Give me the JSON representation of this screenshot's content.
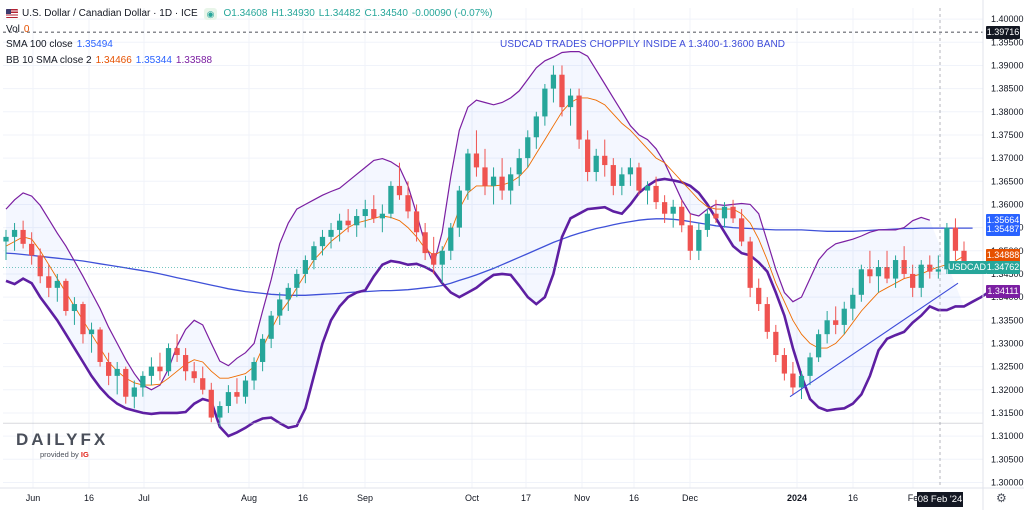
{
  "header": {
    "title": "U.S. Dollar / Canadian Dollar · 1D · ICE",
    "ohlc": {
      "o": "O1.34608",
      "h": "H1.34930",
      "l": "L1.34482",
      "c": "C1.34540",
      "chg": "-0.00090 (-0.07%)"
    },
    "vol_label": "Vol",
    "vol_value": "0",
    "sma_label": "SMA 100 close",
    "sma_value": "1.35494",
    "bb_label": "BB 10 SMA close 2",
    "bb_basis": "1.34466",
    "bb_upper": "1.35344",
    "bb_lower": "1.33588"
  },
  "annotation": "USDCAD TRADES CHOPPILY INSIDE A 1.3400-1.3600 BAND",
  "logo": {
    "name": "DAILYFX",
    "provided_by": "provided by",
    "brand": "IG"
  },
  "price_tags": [
    {
      "label": "1.39716",
      "value": 1.3972,
      "color": "#131722"
    },
    {
      "label": "1.35664",
      "value": 1.3566,
      "color": "#2962ff"
    },
    {
      "label": "1.35487",
      "value": 1.3545,
      "color": "#2962ff"
    },
    {
      "label": "1.34888",
      "value": 1.3489,
      "color": "#e65100"
    },
    {
      "label": "1.34762",
      "value": 1.3464,
      "color": "#26a69a"
    },
    {
      "label": "1.34111",
      "value": 1.3412,
      "color": "#7b1fa2"
    }
  ],
  "usdcad_tag": "USDCAD",
  "crosshair_date": "08 Feb '24",
  "chart_data": {
    "type": "candlestick",
    "y_ticks": [
      "1.40000",
      "1.39500",
      "1.39000",
      "1.38500",
      "1.38000",
      "1.37500",
      "1.37000",
      "1.36500",
      "1.36000",
      "1.35500",
      "1.35000",
      "1.34500",
      "1.34000",
      "1.33500",
      "1.33000",
      "1.32500",
      "1.32000",
      "1.31500",
      "1.31000",
      "1.30500",
      "1.30000"
    ],
    "ylim": [
      1.2988,
      1.4024
    ],
    "x_ticks": [
      "Jun",
      "16",
      "Jul",
      "Aug",
      "16",
      "Sep",
      "Oct",
      "17",
      "Nov",
      "16",
      "Dec",
      "2024",
      "16",
      "Fe"
    ],
    "upper_band": [
      1.359,
      1.361,
      1.3625,
      1.3618,
      1.3598,
      1.3568,
      1.3538,
      1.351,
      1.3478,
      1.3445,
      1.341,
      1.3375,
      1.3335,
      1.33,
      1.3265,
      1.3235,
      1.321,
      1.32,
      1.321,
      1.3245,
      1.3295,
      1.333,
      1.335,
      1.334,
      1.33,
      1.3262,
      1.3252,
      1.3268,
      1.328,
      1.33,
      1.337,
      1.3438,
      1.3515,
      1.356,
      1.359,
      1.36,
      1.361,
      1.362,
      1.3628,
      1.3635,
      1.365,
      1.3665,
      1.368,
      1.3695,
      1.3699,
      1.3692,
      1.368,
      1.364,
      1.358,
      1.3515,
      1.347,
      1.354,
      1.366,
      1.376,
      1.381,
      1.3825,
      1.382,
      1.3815,
      1.382,
      1.383,
      1.3845,
      1.387,
      1.3895,
      1.391,
      1.3918,
      1.3928,
      1.393,
      1.393,
      1.392,
      1.389,
      1.386,
      1.383,
      1.38,
      1.377,
      1.375,
      1.374,
      1.372,
      1.369,
      1.365,
      1.361,
      1.358,
      1.3575,
      1.359,
      1.36,
      1.3598,
      1.36,
      1.3602,
      1.36,
      1.358,
      1.352,
      1.346,
      1.341,
      1.339,
      1.34,
      1.344,
      1.348,
      1.3502,
      1.3515,
      1.352,
      1.3525,
      1.3532,
      1.354,
      1.3545,
      1.3545,
      1.3545,
      1.355,
      1.3565,
      1.3572,
      1.3566
    ],
    "lower_band": [
      1.3435,
      1.3428,
      1.344,
      1.343,
      1.34,
      1.3375,
      1.335,
      1.332,
      1.329,
      1.326,
      1.323,
      1.3205,
      1.3185,
      1.317,
      1.316,
      1.3155,
      1.315,
      1.3148,
      1.315,
      1.315,
      1.315,
      1.3152,
      1.317,
      1.318,
      1.3175,
      1.312,
      1.31,
      1.3108,
      1.3118,
      1.313,
      1.3138,
      1.314,
      1.3128,
      1.3118,
      1.3122,
      1.316,
      1.323,
      1.33,
      1.335,
      1.338,
      1.34,
      1.341,
      1.3415,
      1.3445,
      1.347,
      1.3478,
      1.3475,
      1.347,
      1.3472,
      1.3465,
      1.3455,
      1.343,
      1.341,
      1.34,
      1.341,
      1.342,
      1.3435,
      1.3448,
      1.345,
      1.3448,
      1.3425,
      1.34,
      1.3385,
      1.34,
      1.345,
      1.353,
      1.357,
      1.358,
      1.359,
      1.3592,
      1.3594,
      1.3585,
      1.358,
      1.36,
      1.3625,
      1.364,
      1.3652,
      1.3655,
      1.3652,
      1.3648,
      1.364,
      1.3625,
      1.36,
      1.357,
      1.354,
      1.351,
      1.3495,
      1.349,
      1.3475,
      1.3455,
      1.341,
      1.336,
      1.329,
      1.323,
      1.318,
      1.3162,
      1.3155,
      1.3158,
      1.316,
      1.317,
      1.319,
      1.323,
      1.3285,
      1.331,
      1.3318,
      1.3325,
      1.3345,
      1.336,
      1.338,
      1.3372,
      1.3372,
      1.338,
      1.338,
      1.339,
      1.34,
      1.3412
    ],
    "basis": [
      1.351,
      1.352,
      1.353,
      1.3525,
      1.35,
      1.347,
      1.344,
      1.341,
      1.338,
      1.335,
      1.332,
      1.329,
      1.326,
      1.324,
      1.3225,
      1.3215,
      1.321,
      1.321,
      1.3212,
      1.3225,
      1.324,
      1.3255,
      1.3265,
      1.326,
      1.324,
      1.3225,
      1.3225,
      1.323,
      1.3235,
      1.325,
      1.329,
      1.333,
      1.3365,
      1.339,
      1.342,
      1.345,
      1.348,
      1.35,
      1.352,
      1.3535,
      1.355,
      1.356,
      1.3565,
      1.357,
      1.3575,
      1.3572,
      1.3565,
      1.355,
      1.353,
      1.3505,
      1.349,
      1.35,
      1.354,
      1.359,
      1.3625,
      1.364,
      1.364,
      1.364,
      1.3642,
      1.3648,
      1.366,
      1.368,
      1.371,
      1.374,
      1.377,
      1.38,
      1.382,
      1.383,
      1.383,
      1.3825,
      1.3815,
      1.3795,
      1.3775,
      1.376,
      1.374,
      1.372,
      1.37,
      1.369,
      1.367,
      1.365,
      1.363,
      1.361,
      1.3595,
      1.359,
      1.359,
      1.359,
      1.358,
      1.356,
      1.3525,
      1.348,
      1.343,
      1.339,
      1.335,
      1.332,
      1.33,
      1.329,
      1.329,
      1.33,
      1.332,
      1.3345,
      1.337,
      1.339,
      1.341,
      1.342,
      1.343,
      1.344,
      1.3445,
      1.345,
      1.3458,
      1.3465,
      1.347,
      1.3478,
      1.3489
    ],
    "sma100": [
      1.3495,
      1.3494,
      1.3492,
      1.349,
      1.3488,
      1.3486,
      1.3484,
      1.3482,
      1.348,
      1.3478,
      1.3475,
      1.3472,
      1.3469,
      1.3466,
      1.3463,
      1.346,
      1.3457,
      1.3454,
      1.345,
      1.3446,
      1.3442,
      1.3438,
      1.3434,
      1.343,
      1.3426,
      1.3422,
      1.3418,
      1.3415,
      1.3412,
      1.341,
      1.3408,
      1.3406,
      1.3405,
      1.3404,
      1.3404,
      1.3404,
      1.3405,
      1.3406,
      1.3407,
      1.3408,
      1.341,
      1.3411,
      1.3412,
      1.3413,
      1.3414,
      1.3414,
      1.3415,
      1.3416,
      1.3418,
      1.342,
      1.3422,
      1.3425,
      1.343,
      1.3436,
      1.3442,
      1.3448,
      1.3455,
      1.3462,
      1.347,
      1.3478,
      1.3486,
      1.3494,
      1.3502,
      1.351,
      1.3518,
      1.3525,
      1.3532,
      1.3538,
      1.3543,
      1.3548,
      1.3552,
      1.3556,
      1.356,
      1.3563,
      1.3566,
      1.3568,
      1.3569,
      1.3569,
      1.3568,
      1.3566,
      1.3563,
      1.356,
      1.3557,
      1.3554,
      1.3552,
      1.355,
      1.3549,
      1.3548,
      1.3547,
      1.3546,
      1.3545,
      1.3545,
      1.3545,
      1.3545,
      1.3544,
      1.3543,
      1.3542,
      1.3542,
      1.3542,
      1.3542,
      1.3543,
      1.3544,
      1.3545,
      1.3546,
      1.3547,
      1.3548,
      1.3548,
      1.3549,
      1.3549,
      1.3549,
      1.3549,
      1.3549,
      1.3549,
      1.3549
    ],
    "candles": [
      [
        1.352,
        1.3545,
        1.348,
        1.353
      ],
      [
        1.353,
        1.356,
        1.35,
        1.3545
      ],
      [
        1.3545,
        1.3565,
        1.3505,
        1.3515
      ],
      [
        1.3515,
        1.354,
        1.347,
        1.349
      ],
      [
        1.349,
        1.3505,
        1.343,
        1.3445
      ],
      [
        1.3445,
        1.347,
        1.34,
        1.342
      ],
      [
        1.342,
        1.345,
        1.339,
        1.3435
      ],
      [
        1.3435,
        1.344,
        1.336,
        1.337
      ],
      [
        1.337,
        1.34,
        1.334,
        1.3385
      ],
      [
        1.3385,
        1.339,
        1.33,
        1.332
      ],
      [
        1.332,
        1.3345,
        1.328,
        1.333
      ],
      [
        1.333,
        1.3335,
        1.325,
        1.326
      ],
      [
        1.326,
        1.328,
        1.321,
        1.323
      ],
      [
        1.323,
        1.326,
        1.319,
        1.3245
      ],
      [
        1.3245,
        1.325,
        1.317,
        1.3185
      ],
      [
        1.3185,
        1.322,
        1.316,
        1.3205
      ],
      [
        1.3205,
        1.324,
        1.3185,
        1.323
      ],
      [
        1.323,
        1.327,
        1.321,
        1.325
      ],
      [
        1.325,
        1.328,
        1.322,
        1.324
      ],
      [
        1.324,
        1.33,
        1.323,
        1.329
      ],
      [
        1.329,
        1.332,
        1.326,
        1.3275
      ],
      [
        1.3275,
        1.329,
        1.322,
        1.324
      ],
      [
        1.324,
        1.326,
        1.3215,
        1.3225
      ],
      [
        1.3225,
        1.325,
        1.319,
        1.32
      ],
      [
        1.32,
        1.3215,
        1.313,
        1.314
      ],
      [
        1.314,
        1.3175,
        1.312,
        1.3165
      ],
      [
        1.3165,
        1.321,
        1.315,
        1.3195
      ],
      [
        1.3195,
        1.3225,
        1.317,
        1.3185
      ],
      [
        1.3185,
        1.323,
        1.317,
        1.322
      ],
      [
        1.322,
        1.327,
        1.32,
        1.326
      ],
      [
        1.326,
        1.332,
        1.324,
        1.331
      ],
      [
        1.331,
        1.337,
        1.329,
        1.336
      ],
      [
        1.336,
        1.341,
        1.334,
        1.3395
      ],
      [
        1.3395,
        1.343,
        1.337,
        1.342
      ],
      [
        1.342,
        1.346,
        1.34,
        1.345
      ],
      [
        1.345,
        1.349,
        1.343,
        1.348
      ],
      [
        1.348,
        1.352,
        1.346,
        1.351
      ],
      [
        1.351,
        1.3545,
        1.349,
        1.353
      ],
      [
        1.353,
        1.356,
        1.3505,
        1.3545
      ],
      [
        1.3545,
        1.358,
        1.352,
        1.3565
      ],
      [
        1.3565,
        1.359,
        1.354,
        1.3555
      ],
      [
        1.3555,
        1.359,
        1.353,
        1.3575
      ],
      [
        1.3575,
        1.361,
        1.355,
        1.359
      ],
      [
        1.359,
        1.362,
        1.356,
        1.357
      ],
      [
        1.357,
        1.36,
        1.354,
        1.358
      ],
      [
        1.358,
        1.365,
        1.357,
        1.364
      ],
      [
        1.364,
        1.369,
        1.361,
        1.362
      ],
      [
        1.362,
        1.365,
        1.357,
        1.3585
      ],
      [
        1.3585,
        1.36,
        1.352,
        1.354
      ],
      [
        1.354,
        1.356,
        1.348,
        1.3495
      ],
      [
        1.3495,
        1.353,
        1.345,
        1.347
      ],
      [
        1.347,
        1.351,
        1.343,
        1.35
      ],
      [
        1.35,
        1.356,
        1.348,
        1.355
      ],
      [
        1.355,
        1.364,
        1.353,
        1.363
      ],
      [
        1.363,
        1.372,
        1.361,
        1.371
      ],
      [
        1.371,
        1.376,
        1.366,
        1.368
      ],
      [
        1.368,
        1.372,
        1.362,
        1.364
      ],
      [
        1.364,
        1.368,
        1.36,
        1.366
      ],
      [
        1.366,
        1.37,
        1.361,
        1.363
      ],
      [
        1.363,
        1.368,
        1.36,
        1.3665
      ],
      [
        1.3665,
        1.372,
        1.364,
        1.37
      ],
      [
        1.37,
        1.376,
        1.368,
        1.3745
      ],
      [
        1.3745,
        1.38,
        1.372,
        1.379
      ],
      [
        1.379,
        1.386,
        1.377,
        1.385
      ],
      [
        1.385,
        1.39,
        1.382,
        1.388
      ],
      [
        1.388,
        1.39,
        1.379,
        1.381
      ],
      [
        1.381,
        1.385,
        1.377,
        1.3835
      ],
      [
        1.3835,
        1.385,
        1.372,
        1.374
      ],
      [
        1.374,
        1.376,
        1.365,
        1.367
      ],
      [
        1.367,
        1.372,
        1.365,
        1.3705
      ],
      [
        1.3705,
        1.374,
        1.366,
        1.3685
      ],
      [
        1.3685,
        1.37,
        1.362,
        1.364
      ],
      [
        1.364,
        1.368,
        1.362,
        1.3665
      ],
      [
        1.3665,
        1.37,
        1.364,
        1.368
      ],
      [
        1.368,
        1.369,
        1.362,
        1.363
      ],
      [
        1.363,
        1.365,
        1.36,
        1.364
      ],
      [
        1.364,
        1.366,
        1.359,
        1.3605
      ],
      [
        1.3605,
        1.362,
        1.356,
        1.358
      ],
      [
        1.358,
        1.361,
        1.355,
        1.3595
      ],
      [
        1.3595,
        1.361,
        1.354,
        1.3555
      ],
      [
        1.3555,
        1.358,
        1.348,
        1.35
      ],
      [
        1.35,
        1.356,
        1.348,
        1.3545
      ],
      [
        1.3545,
        1.359,
        1.353,
        1.358
      ],
      [
        1.358,
        1.361,
        1.356,
        1.357
      ],
      [
        1.357,
        1.3605,
        1.355,
        1.3595
      ],
      [
        1.3595,
        1.361,
        1.356,
        1.357
      ],
      [
        1.357,
        1.359,
        1.351,
        1.352
      ],
      [
        1.352,
        1.353,
        1.34,
        1.342
      ],
      [
        1.342,
        1.344,
        1.337,
        1.3385
      ],
      [
        1.3385,
        1.34,
        1.331,
        1.3325
      ],
      [
        1.3325,
        1.334,
        1.326,
        1.3275
      ],
      [
        1.3275,
        1.329,
        1.322,
        1.3235
      ],
      [
        1.3235,
        1.326,
        1.319,
        1.3205
      ],
      [
        1.3205,
        1.324,
        1.318,
        1.323
      ],
      [
        1.323,
        1.328,
        1.321,
        1.327
      ],
      [
        1.327,
        1.333,
        1.326,
        1.332
      ],
      [
        1.332,
        1.337,
        1.33,
        1.335
      ],
      [
        1.335,
        1.338,
        1.332,
        1.334
      ],
      [
        1.334,
        1.339,
        1.332,
        1.3375
      ],
      [
        1.3375,
        1.342,
        1.335,
        1.3405
      ],
      [
        1.3405,
        1.347,
        1.339,
        1.346
      ],
      [
        1.346,
        1.35,
        1.343,
        1.3445
      ],
      [
        1.3445,
        1.348,
        1.341,
        1.3465
      ],
      [
        1.3465,
        1.35,
        1.343,
        1.344
      ],
      [
        1.344,
        1.349,
        1.342,
        1.348
      ],
      [
        1.348,
        1.351,
        1.344,
        1.345
      ],
      [
        1.345,
        1.347,
        1.34,
        1.342
      ],
      [
        1.342,
        1.348,
        1.34,
        1.347
      ],
      [
        1.347,
        1.349,
        1.344,
        1.3455
      ],
      [
        1.3455,
        1.349,
        1.344,
        1.346
      ],
      [
        1.346,
        1.356,
        1.345,
        1.355
      ],
      [
        1.355,
        1.357,
        1.348,
        1.35
      ],
      [
        1.35,
        1.352,
        1.346,
        1.3475
      ]
    ]
  }
}
